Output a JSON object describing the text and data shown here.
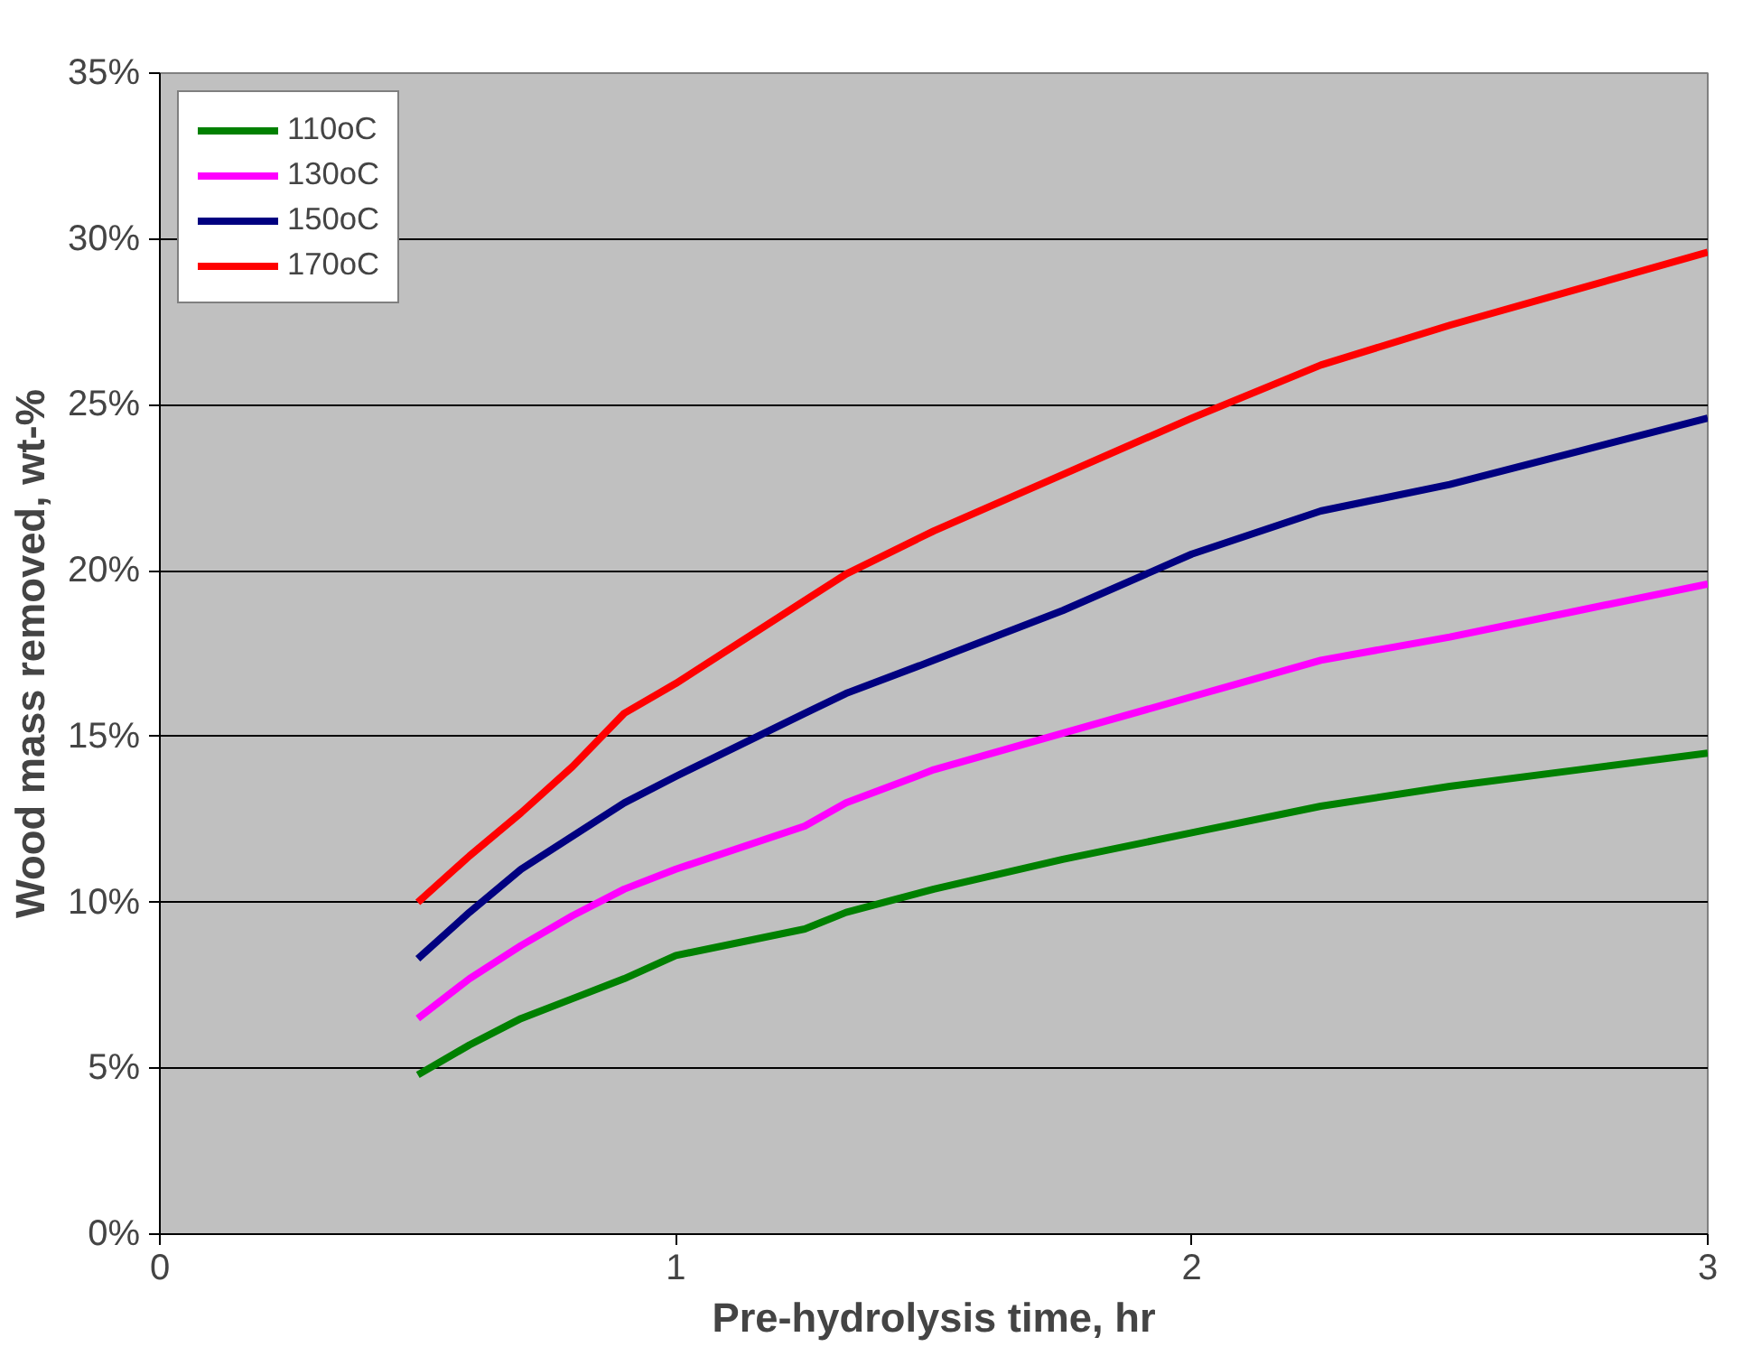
{
  "chart_data": {
    "type": "line",
    "xlabel": "Pre-hydrolysis time, hr",
    "ylabel": "Wood mass removed, wt-%",
    "xlim": [
      0,
      3
    ],
    "xticks": [
      0,
      1,
      2,
      3
    ],
    "ylim": [
      0,
      35
    ],
    "yticks": [
      {
        "value": 0,
        "label": "0%"
      },
      {
        "value": 5,
        "label": "5%"
      },
      {
        "value": 10,
        "label": "10%"
      },
      {
        "value": 15,
        "label": "15%"
      },
      {
        "value": 20,
        "label": "20%"
      },
      {
        "value": 25,
        "label": "25%"
      },
      {
        "value": 30,
        "label": "30%"
      },
      {
        "value": 35,
        "label": "35%"
      }
    ],
    "grid": "y",
    "legend": "top left",
    "x": [
      0.5,
      0.6,
      0.7,
      0.8,
      0.9,
      1.0,
      1.25,
      1.33,
      1.5,
      1.75,
      2.0,
      2.25,
      2.5,
      2.75,
      3.0
    ],
    "series": [
      {
        "name": "110oC",
        "color": "#008000",
        "values": [
          4.8,
          5.7,
          6.5,
          7.1,
          7.7,
          8.4,
          9.2,
          9.7,
          10.4,
          11.3,
          12.1,
          12.9,
          13.5,
          14.0,
          14.5
        ]
      },
      {
        "name": "130oC",
        "color": "#ff00ff",
        "values": [
          6.5,
          7.7,
          8.7,
          9.6,
          10.4,
          11.0,
          12.3,
          13.0,
          14.0,
          15.1,
          16.2,
          17.3,
          18.0,
          18.8,
          19.6
        ]
      },
      {
        "name": "150oC",
        "color": "#000080",
        "values": [
          8.3,
          9.7,
          11.0,
          12.0,
          13.0,
          13.8,
          15.7,
          16.3,
          17.3,
          18.8,
          20.5,
          21.8,
          22.6,
          23.6,
          24.6
        ]
      },
      {
        "name": "170oC",
        "color": "#ff0000",
        "values": [
          10.0,
          11.4,
          12.7,
          14.1,
          15.7,
          16.6,
          19.1,
          19.9,
          21.2,
          22.9,
          24.6,
          26.2,
          27.4,
          28.5,
          29.6
        ]
      }
    ]
  }
}
